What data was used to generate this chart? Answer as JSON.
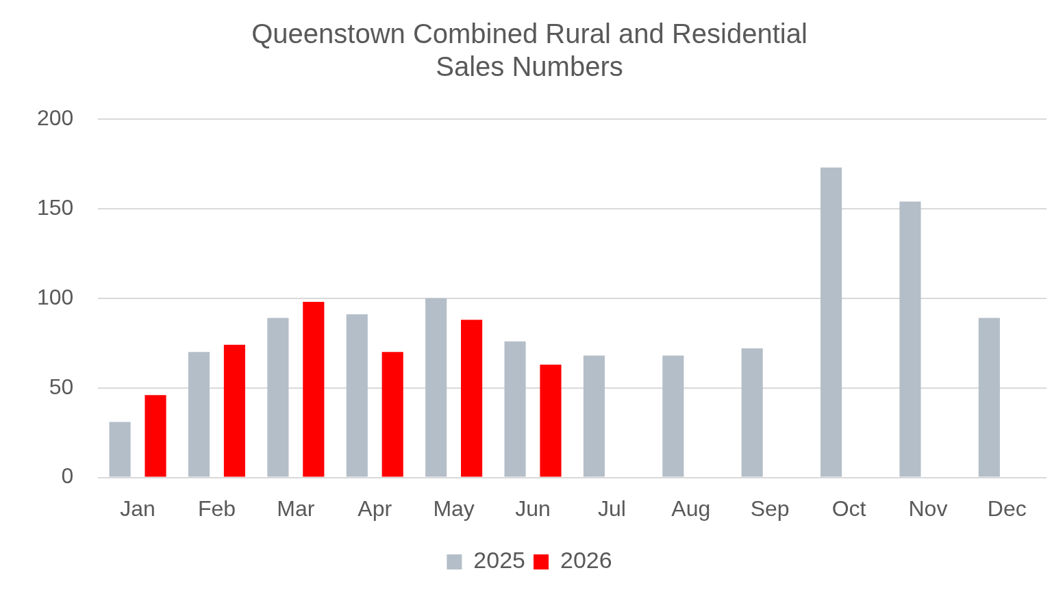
{
  "chart_data": {
    "type": "bar",
    "title": "Queenstown Combined Rural and Residential Sales Numbers",
    "categories": [
      "Jan",
      "Feb",
      "Mar",
      "Apr",
      "May",
      "Jun",
      "Jul",
      "Aug",
      "Sep",
      "Oct",
      "Nov",
      "Dec"
    ],
    "series": [
      {
        "name": "2025",
        "color": "#b4bec8",
        "values": [
          31,
          70,
          89,
          91,
          100,
          76,
          68,
          68,
          72,
          173,
          154,
          89
        ]
      },
      {
        "name": "2026",
        "color": "#ff0000",
        "values": [
          46,
          74,
          98,
          70,
          88,
          63,
          null,
          null,
          null,
          null,
          null,
          null
        ]
      }
    ],
    "ylim": [
      0,
      200
    ],
    "yticks": [
      0,
      50,
      100,
      150,
      200
    ],
    "grid": "y",
    "legend": "bottom"
  }
}
